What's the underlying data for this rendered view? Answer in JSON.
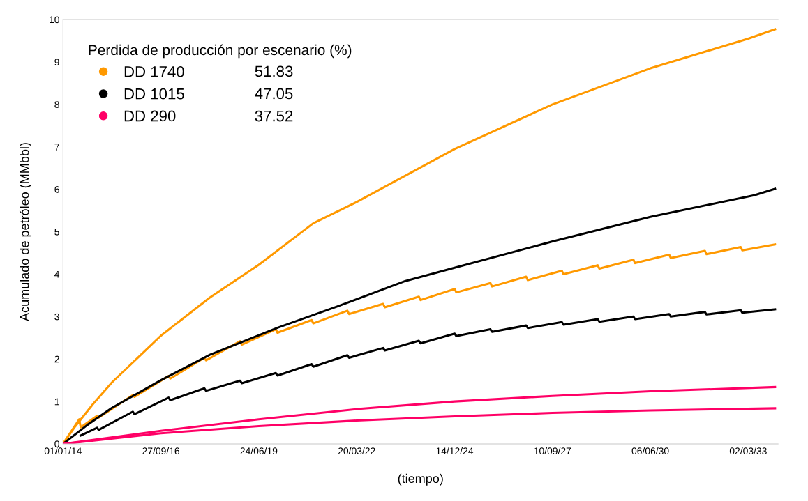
{
  "chart_data": {
    "type": "line",
    "xlabel": "(tiempo)",
    "ylabel": "Acumulado de petróleo (MMbbl)",
    "legend_title": "Perdida de producción por escenario (%)",
    "legend": "top left",
    "grid": false,
    "marker": "none",
    "line_style": "solid",
    "xlim": [
      "2014-01-01",
      "2034-01-01"
    ],
    "xticks": [
      {
        "value": "2014-01-01",
        "label": "01/01/14"
      },
      {
        "value": "2016-09-27",
        "label": "27/09/16"
      },
      {
        "value": "2019-06-24",
        "label": "24/06/19"
      },
      {
        "value": "2022-03-20",
        "label": "20/03/22"
      },
      {
        "value": "2024-12-14",
        "label": "14/12/24"
      },
      {
        "value": "2027-09-10",
        "label": "10/09/27"
      },
      {
        "value": "2030-06-06",
        "label": "06/06/30"
      },
      {
        "value": "2033-03-02",
        "label": "02/03/33"
      }
    ],
    "ylim": [
      0,
      10
    ],
    "yticks": [
      0,
      1,
      2,
      3,
      4,
      5,
      6,
      7,
      8,
      9,
      10
    ],
    "annotations": [
      "51.83",
      "47.05",
      "37.52"
    ],
    "series": [
      {
        "name": "DD 1740",
        "color": "#ff9900",
        "x": [
          "2014-01-01",
          "2014-05-01",
          "2014-11-04",
          "2015-05-16",
          "2016-09-27",
          "2018-02-09",
          "2019-06-24",
          "2021-01-01",
          "2022-03-20",
          "2024-12-14",
          "2027-09-10",
          "2030-06-06",
          "2033-03-02",
          "2033-12-01"
        ],
        "values": [
          0,
          0.4,
          0.94,
          1.45,
          2.55,
          3.45,
          4.22,
          5.2,
          5.7,
          6.95,
          8.0,
          8.85,
          9.55,
          9.77
        ]
      },
      {
        "color": "#ff9900",
        "x": [
          "2014-01-01",
          "2014-06-15",
          "2014-07-01",
          "2014-12-15",
          "2015-01-01",
          "2015-12-15",
          "2016-01-01",
          "2016-12-15",
          "2017-01-01",
          "2017-12-15",
          "2018-01-01",
          "2018-12-15",
          "2019-01-01",
          "2019-12-15",
          "2020-01-01",
          "2020-12-15",
          "2021-01-01",
          "2021-12-15",
          "2022-01-01",
          "2022-12-15",
          "2023-01-01",
          "2023-12-15",
          "2024-01-01",
          "2024-12-15",
          "2025-01-01",
          "2025-12-15",
          "2026-01-01",
          "2026-12-15",
          "2027-01-01",
          "2027-12-15",
          "2028-01-01",
          "2028-12-15",
          "2029-01-01",
          "2029-12-15",
          "2030-01-01",
          "2030-12-15",
          "2031-01-01",
          "2031-12-15",
          "2032-01-01",
          "2032-12-15",
          "2033-01-01",
          "2033-12-01"
        ],
        "values": [
          0,
          0.58,
          0.39,
          0.66,
          0.62,
          1.15,
          1.11,
          1.6,
          1.54,
          2.03,
          1.97,
          2.42,
          2.34,
          2.7,
          2.62,
          2.92,
          2.84,
          3.14,
          3.06,
          3.3,
          3.22,
          3.47,
          3.39,
          3.65,
          3.57,
          3.79,
          3.71,
          3.94,
          3.86,
          4.08,
          4.0,
          4.21,
          4.13,
          4.34,
          4.26,
          4.46,
          4.38,
          4.55,
          4.47,
          4.64,
          4.56,
          4.7
        ]
      },
      {
        "name": "DD 1015",
        "color": "#000000",
        "x": [
          "2014-01-01",
          "2014-09-08",
          "2015-05-16",
          "2016-09-27",
          "2018-02-09",
          "2020-01-06",
          "2021-08-22",
          "2023-08-01",
          "2024-12-14",
          "2027-09-10",
          "2030-06-06",
          "2033-05-01",
          "2033-12-01"
        ],
        "values": [
          0,
          0.45,
          0.85,
          1.5,
          2.1,
          2.74,
          3.23,
          3.84,
          4.15,
          4.77,
          5.35,
          5.86,
          6.01
        ]
      },
      {
        "color": "#000000",
        "x": [
          "2014-07-01",
          "2014-12-15",
          "2015-01-01",
          "2015-12-15",
          "2016-01-01",
          "2016-12-15",
          "2017-01-01",
          "2017-12-15",
          "2018-01-01",
          "2018-12-15",
          "2019-01-01",
          "2019-12-15",
          "2020-01-01",
          "2020-12-15",
          "2021-01-01",
          "2021-12-15",
          "2022-01-01",
          "2022-12-15",
          "2023-01-01",
          "2023-12-15",
          "2024-01-01",
          "2024-12-15",
          "2025-01-01",
          "2025-12-15",
          "2026-01-01",
          "2026-12-15",
          "2027-01-01",
          "2027-12-15",
          "2028-01-01",
          "2028-12-15",
          "2029-01-01",
          "2029-12-15",
          "2030-01-01",
          "2030-12-15",
          "2031-01-01",
          "2031-12-15",
          "2032-01-01",
          "2032-12-15",
          "2033-01-01",
          "2033-12-01"
        ],
        "values": [
          0.2,
          0.38,
          0.33,
          0.76,
          0.7,
          1.09,
          1.03,
          1.31,
          1.25,
          1.49,
          1.43,
          1.67,
          1.61,
          1.88,
          1.82,
          2.09,
          2.03,
          2.26,
          2.2,
          2.43,
          2.37,
          2.6,
          2.54,
          2.7,
          2.64,
          2.79,
          2.73,
          2.87,
          2.81,
          2.94,
          2.88,
          3.0,
          2.94,
          3.06,
          3.0,
          3.11,
          3.05,
          3.15,
          3.09,
          3.17
        ]
      },
      {
        "name": "DD 290",
        "color": "#ff0066",
        "x": [
          "2014-01-01",
          "2016-09-27",
          "2019-06-24",
          "2022-03-20",
          "2024-12-14",
          "2027-09-10",
          "2030-06-06",
          "2033-12-01"
        ],
        "values": [
          0,
          0.31,
          0.58,
          0.82,
          1.0,
          1.13,
          1.24,
          1.34
        ]
      },
      {
        "color": "#ff0066",
        "x": [
          "2014-01-01",
          "2016-09-27",
          "2019-06-24",
          "2022-03-20",
          "2024-12-14",
          "2027-09-10",
          "2030-06-06",
          "2033-12-01"
        ],
        "values": [
          0,
          0.25,
          0.42,
          0.55,
          0.65,
          0.73,
          0.79,
          0.84
        ]
      }
    ]
  }
}
